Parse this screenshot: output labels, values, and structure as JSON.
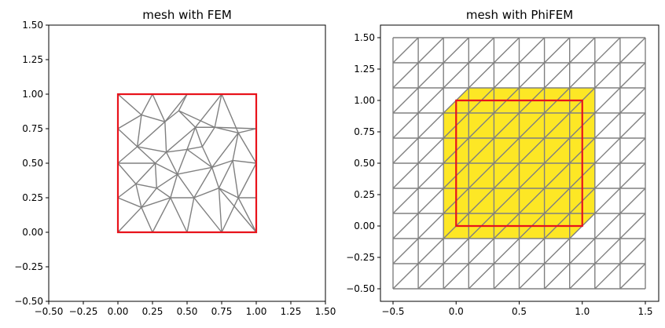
{
  "chart_data": [
    {
      "type": "mesh",
      "title": "mesh with FEM",
      "xlim": [
        -0.5,
        1.5
      ],
      "ylim": [
        -0.5,
        1.5
      ],
      "xticks": [
        "−0.50",
        "−0.25",
        "0.00",
        "0.25",
        "0.50",
        "0.75",
        "1.00",
        "1.25",
        "1.50"
      ],
      "yticks": [
        "−0.50",
        "−0.25",
        "0.00",
        "0.25",
        "0.50",
        "0.75",
        "1.00",
        "1.25",
        "1.50"
      ],
      "xtick_values": [
        -0.5,
        -0.25,
        0,
        0.25,
        0.5,
        0.75,
        1.0,
        1.25,
        1.5
      ],
      "ytick_values": [
        -0.5,
        -0.25,
        0,
        0.25,
        0.5,
        0.75,
        1.0,
        1.25,
        1.5
      ],
      "boundary_square": [
        [
          0,
          0
        ],
        [
          1,
          0
        ],
        [
          1,
          1
        ],
        [
          0,
          1
        ]
      ],
      "boundary_color": "#e8131b",
      "mesh_color": "#808080",
      "mesh_nodes": [
        [
          0,
          0
        ],
        [
          0.25,
          0
        ],
        [
          0.5,
          0
        ],
        [
          0.75,
          0
        ],
        [
          1,
          0
        ],
        [
          1,
          0.25
        ],
        [
          1,
          0.5
        ],
        [
          1,
          0.75
        ],
        [
          1,
          1
        ],
        [
          0.75,
          1
        ],
        [
          0.5,
          1
        ],
        [
          0.25,
          1
        ],
        [
          0,
          1
        ],
        [
          0,
          0.75
        ],
        [
          0,
          0.5
        ],
        [
          0,
          0.25
        ],
        [
          0.17,
          0.18
        ],
        [
          0.38,
          0.25
        ],
        [
          0.55,
          0.25
        ],
        [
          0.73,
          0.32
        ],
        [
          0.87,
          0.25
        ],
        [
          0.13,
          0.35
        ],
        [
          0.27,
          0.5
        ],
        [
          0.43,
          0.42
        ],
        [
          0.68,
          0.47
        ],
        [
          0.83,
          0.52
        ],
        [
          0.14,
          0.62
        ],
        [
          0.35,
          0.58
        ],
        [
          0.5,
          0.6
        ],
        [
          0.34,
          0.8
        ],
        [
          0.56,
          0.76
        ],
        [
          0.7,
          0.76
        ],
        [
          0.87,
          0.72
        ],
        [
          0.17,
          0.85
        ],
        [
          0.44,
          0.88
        ],
        [
          0.61,
          0.62
        ],
        [
          0.28,
          0.32
        ]
      ],
      "mesh_edges": [
        [
          0,
          16
        ],
        [
          16,
          1
        ],
        [
          1,
          17
        ],
        [
          17,
          2
        ],
        [
          2,
          18
        ],
        [
          18,
          3
        ],
        [
          3,
          19
        ],
        [
          19,
          4
        ],
        [
          3,
          20
        ],
        [
          20,
          4
        ],
        [
          20,
          5
        ],
        [
          19,
          20
        ],
        [
          20,
          6
        ],
        [
          0,
          15
        ],
        [
          15,
          16
        ],
        [
          15,
          21
        ],
        [
          16,
          21
        ],
        [
          16,
          36
        ],
        [
          36,
          17
        ],
        [
          17,
          18
        ],
        [
          18,
          19
        ],
        [
          16,
          17
        ],
        [
          21,
          36
        ],
        [
          21,
          14
        ],
        [
          21,
          22
        ],
        [
          36,
          22
        ],
        [
          36,
          23
        ],
        [
          17,
          23
        ],
        [
          18,
          23
        ],
        [
          18,
          24
        ],
        [
          19,
          24
        ],
        [
          19,
          25
        ],
        [
          24,
          25
        ],
        [
          25,
          6
        ],
        [
          25,
          20
        ],
        [
          14,
          22
        ],
        [
          14,
          26
        ],
        [
          22,
          26
        ],
        [
          22,
          27
        ],
        [
          22,
          23
        ],
        [
          23,
          27
        ],
        [
          23,
          28
        ],
        [
          27,
          28
        ],
        [
          28,
          24
        ],
        [
          23,
          24
        ],
        [
          24,
          35
        ],
        [
          28,
          35
        ],
        [
          35,
          31
        ],
        [
          35,
          30
        ],
        [
          28,
          30
        ],
        [
          27,
          30
        ],
        [
          27,
          29
        ],
        [
          26,
          27
        ],
        [
          26,
          29
        ],
        [
          25,
          32
        ],
        [
          24,
          32
        ],
        [
          31,
          32
        ],
        [
          32,
          6
        ],
        [
          32,
          7
        ],
        [
          31,
          7
        ],
        [
          31,
          9
        ],
        [
          32,
          9
        ],
        [
          30,
          31
        ],
        [
          26,
          13
        ],
        [
          26,
          33
        ],
        [
          13,
          33
        ],
        [
          33,
          29
        ],
        [
          29,
          34
        ],
        [
          30,
          34
        ],
        [
          34,
          10
        ],
        [
          34,
          31
        ],
        [
          33,
          11
        ],
        [
          11,
          29
        ],
        [
          29,
          10
        ],
        [
          33,
          12
        ],
        [
          12,
          11
        ],
        [
          11,
          10
        ],
        [
          10,
          9
        ],
        [
          9,
          8
        ],
        [
          8,
          7
        ],
        [
          9,
          30
        ],
        [
          13,
          14
        ],
        [
          12,
          13
        ],
        [
          7,
          6
        ],
        [
          6,
          5
        ]
      ]
    },
    {
      "type": "mesh",
      "title": "mesh with PhiFEM",
      "xlim": [
        -0.5,
        1.5
      ],
      "ylim": [
        -0.5,
        1.5
      ],
      "xticks": [
        "−0.5",
        "0.0",
        "0.5",
        "1.0",
        "1.5"
      ],
      "yticks": [
        "−0.50",
        "−0.25",
        "0.00",
        "0.25",
        "0.50",
        "0.75",
        "1.00",
        "1.25",
        "1.50"
      ],
      "xtick_values": [
        -0.5,
        0,
        0.5,
        1.0,
        1.5
      ],
      "ytick_values": [
        -0.5,
        -0.25,
        0,
        0.25,
        0.5,
        0.75,
        1.0,
        1.25,
        1.5
      ],
      "grid_lines": [
        -0.5,
        -0.3,
        -0.1,
        0.1,
        0.3,
        0.5,
        0.7,
        0.9,
        1.1,
        1.3,
        1.5
      ],
      "active_region": [
        [
          -0.1,
          -0.1
        ],
        [
          0.9,
          -0.1
        ],
        [
          1.1,
          0.1
        ],
        [
          1.1,
          1.1
        ],
        [
          0.1,
          1.1
        ],
        [
          -0.1,
          0.9
        ]
      ],
      "active_color": "#fde725",
      "boundary_square": [
        [
          0,
          0
        ],
        [
          1,
          0
        ],
        [
          1,
          1
        ],
        [
          0,
          1
        ]
      ],
      "boundary_color": "#e8131b",
      "mesh_color": "#808080"
    }
  ]
}
